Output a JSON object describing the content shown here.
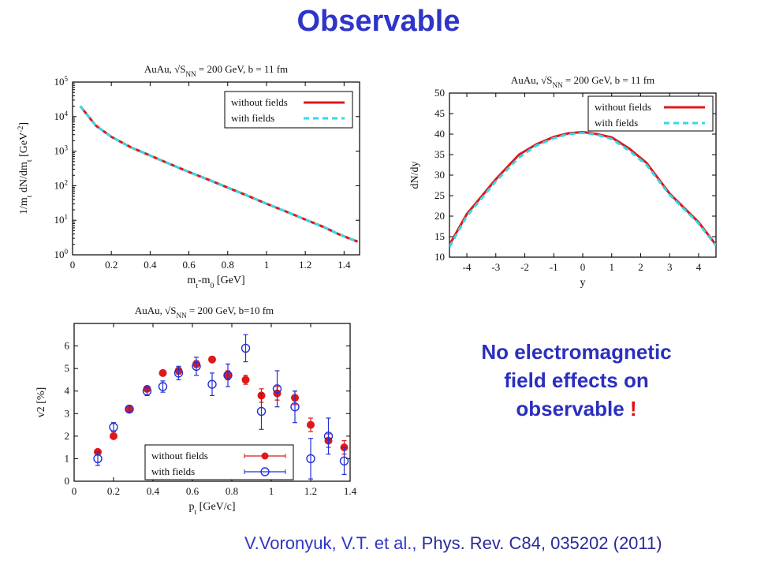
{
  "page": {
    "title": "Observable",
    "conclusion": {
      "line1": "No electromagnetic",
      "line2": "field effects on",
      "line3": "observable",
      "exclamation": "!"
    },
    "citation": {
      "authors": "V.Voronyuk, V.T. et  al.,",
      "journal": "Phys. Rev. C84, 035202  (2011)"
    }
  },
  "chart_data": [
    {
      "id": "mt",
      "type": "line",
      "title": "AuAu,  √S_NN = 200 GeV, b = 11 fm",
      "xlabel": "m_t-m_0 [GeV]",
      "ylabel": "1/m_t dN/dm_t  [GeV^-2]",
      "yscale": "log",
      "xlim": [
        0,
        1.48
      ],
      "ylim": [
        1,
        100000
      ],
      "x_ticks": [
        "0",
        "0.2",
        "0.4",
        "0.6",
        "0.8",
        "1",
        "1.2",
        "1.4"
      ],
      "y_ticks": [
        "10^0",
        "10^1",
        "10^2",
        "10^3",
        "10^4",
        "10^5"
      ],
      "legend_position": "top-right",
      "series": [
        {
          "name": "without fields",
          "color": "#e01818",
          "style": "solid",
          "x": [
            0.04,
            0.12,
            0.2,
            0.3,
            0.4,
            0.5,
            0.6,
            0.7,
            0.8,
            0.9,
            1.0,
            1.1,
            1.2,
            1.3,
            1.37,
            1.47
          ],
          "y": [
            20000,
            5500,
            2600,
            1300,
            750,
            430,
            250,
            150,
            88,
            52,
            30,
            18,
            10.5,
            6.2,
            4.0,
            2.4
          ]
        },
        {
          "name": "with      fields",
          "color": "#35d6ea",
          "style": "dashed",
          "x": [
            0.04,
            0.12,
            0.2,
            0.3,
            0.4,
            0.5,
            0.6,
            0.7,
            0.8,
            0.9,
            1.0,
            1.1,
            1.2,
            1.3,
            1.37,
            1.47
          ],
          "y": [
            20000,
            5500,
            2600,
            1300,
            750,
            430,
            250,
            150,
            88,
            52,
            30,
            18,
            10.5,
            6.2,
            4.0,
            2.4
          ]
        }
      ]
    },
    {
      "id": "dndy",
      "type": "line",
      "title": "AuAu,  √S_NN = 200 GeV, b = 11 fm",
      "xlabel": "y",
      "ylabel": "dN/dy",
      "xlim": [
        -4.6,
        4.6
      ],
      "ylim": [
        10,
        50
      ],
      "x_ticks": [
        "-4",
        "-3",
        "-2",
        "-1",
        "0",
        "1",
        "2",
        "3",
        "4"
      ],
      "y_ticks": [
        "10",
        "15",
        "20",
        "25",
        "30",
        "35",
        "40",
        "45",
        "50"
      ],
      "legend_position": "top-right",
      "series": [
        {
          "name": "without fields",
          "color": "#e01818",
          "style": "solid",
          "x": [
            -4.6,
            -4.0,
            -3.0,
            -2.2,
            -1.6,
            -1.0,
            -0.5,
            0.0,
            0.5,
            1.0,
            1.6,
            2.2,
            3.0,
            4.0,
            4.6
          ],
          "y": [
            13,
            20.5,
            29,
            35,
            37.5,
            39.3,
            40.2,
            40.5,
            40.0,
            39.2,
            36.5,
            33,
            25.5,
            18.5,
            13
          ]
        },
        {
          "name": "with      fields",
          "color": "#35d6ea",
          "style": "dashed",
          "x": [
            -4.6,
            -4.0,
            -3.0,
            -2.2,
            -1.6,
            -1.0,
            -0.5,
            0.0,
            0.5,
            1.0,
            1.6,
            2.2,
            3.0,
            4.0,
            4.6
          ],
          "y": [
            12.5,
            20,
            28.5,
            34.3,
            37.2,
            39.0,
            40.0,
            40.3,
            39.8,
            38.8,
            36.0,
            32.5,
            25.2,
            18.2,
            12.8
          ]
        }
      ]
    },
    {
      "id": "v2",
      "type": "scatter",
      "title": "AuAu,  √S_NN = 200 GeV, b=10 fm",
      "xlabel": "p_t [GeV/c]",
      "ylabel": "v2 [%]",
      "xlim": [
        0,
        1.4
      ],
      "ylim": [
        0,
        7
      ],
      "x_ticks": [
        "0",
        "0.2",
        "0.4",
        "0.6",
        "0.8",
        "1",
        "1.2",
        "1.4"
      ],
      "y_ticks": [
        "0",
        "1",
        "2",
        "3",
        "4",
        "5",
        "6"
      ],
      "legend_position": "bottom-right",
      "series": [
        {
          "name": "without fields",
          "color": "#e01818",
          "marker": "filled-circle",
          "x": [
            0.12,
            0.2,
            0.28,
            0.37,
            0.45,
            0.53,
            0.62,
            0.7,
            0.78,
            0.87,
            0.95,
            1.03,
            1.12,
            1.2,
            1.29,
            1.37
          ],
          "y": [
            1.3,
            2.0,
            3.2,
            4.1,
            4.8,
            4.9,
            5.2,
            5.4,
            4.7,
            4.5,
            3.8,
            3.9,
            3.7,
            2.5,
            1.8,
            1.5
          ],
          "err": [
            0.1,
            0.1,
            0.1,
            0.1,
            0.1,
            0.15,
            0.15,
            0.1,
            0.2,
            0.2,
            0.3,
            0.3,
            0.3,
            0.3,
            0.3,
            0.3
          ]
        },
        {
          "name": "with      fields",
          "color": "#2230d8",
          "marker": "open-circle",
          "x": [
            0.12,
            0.2,
            0.28,
            0.37,
            0.45,
            0.53,
            0.62,
            0.7,
            0.78,
            0.87,
            0.95,
            1.03,
            1.12,
            1.2,
            1.29,
            1.37
          ],
          "y": [
            1.0,
            2.4,
            3.2,
            4.0,
            4.2,
            4.8,
            5.1,
            4.3,
            4.7,
            5.9,
            3.1,
            4.1,
            3.3,
            1.0,
            2.0,
            0.9
          ],
          "err": [
            0.3,
            0.2,
            0.15,
            0.2,
            0.25,
            0.3,
            0.4,
            0.5,
            0.5,
            0.6,
            0.8,
            0.8,
            0.7,
            0.9,
            0.8,
            0.6
          ]
        }
      ]
    }
  ]
}
